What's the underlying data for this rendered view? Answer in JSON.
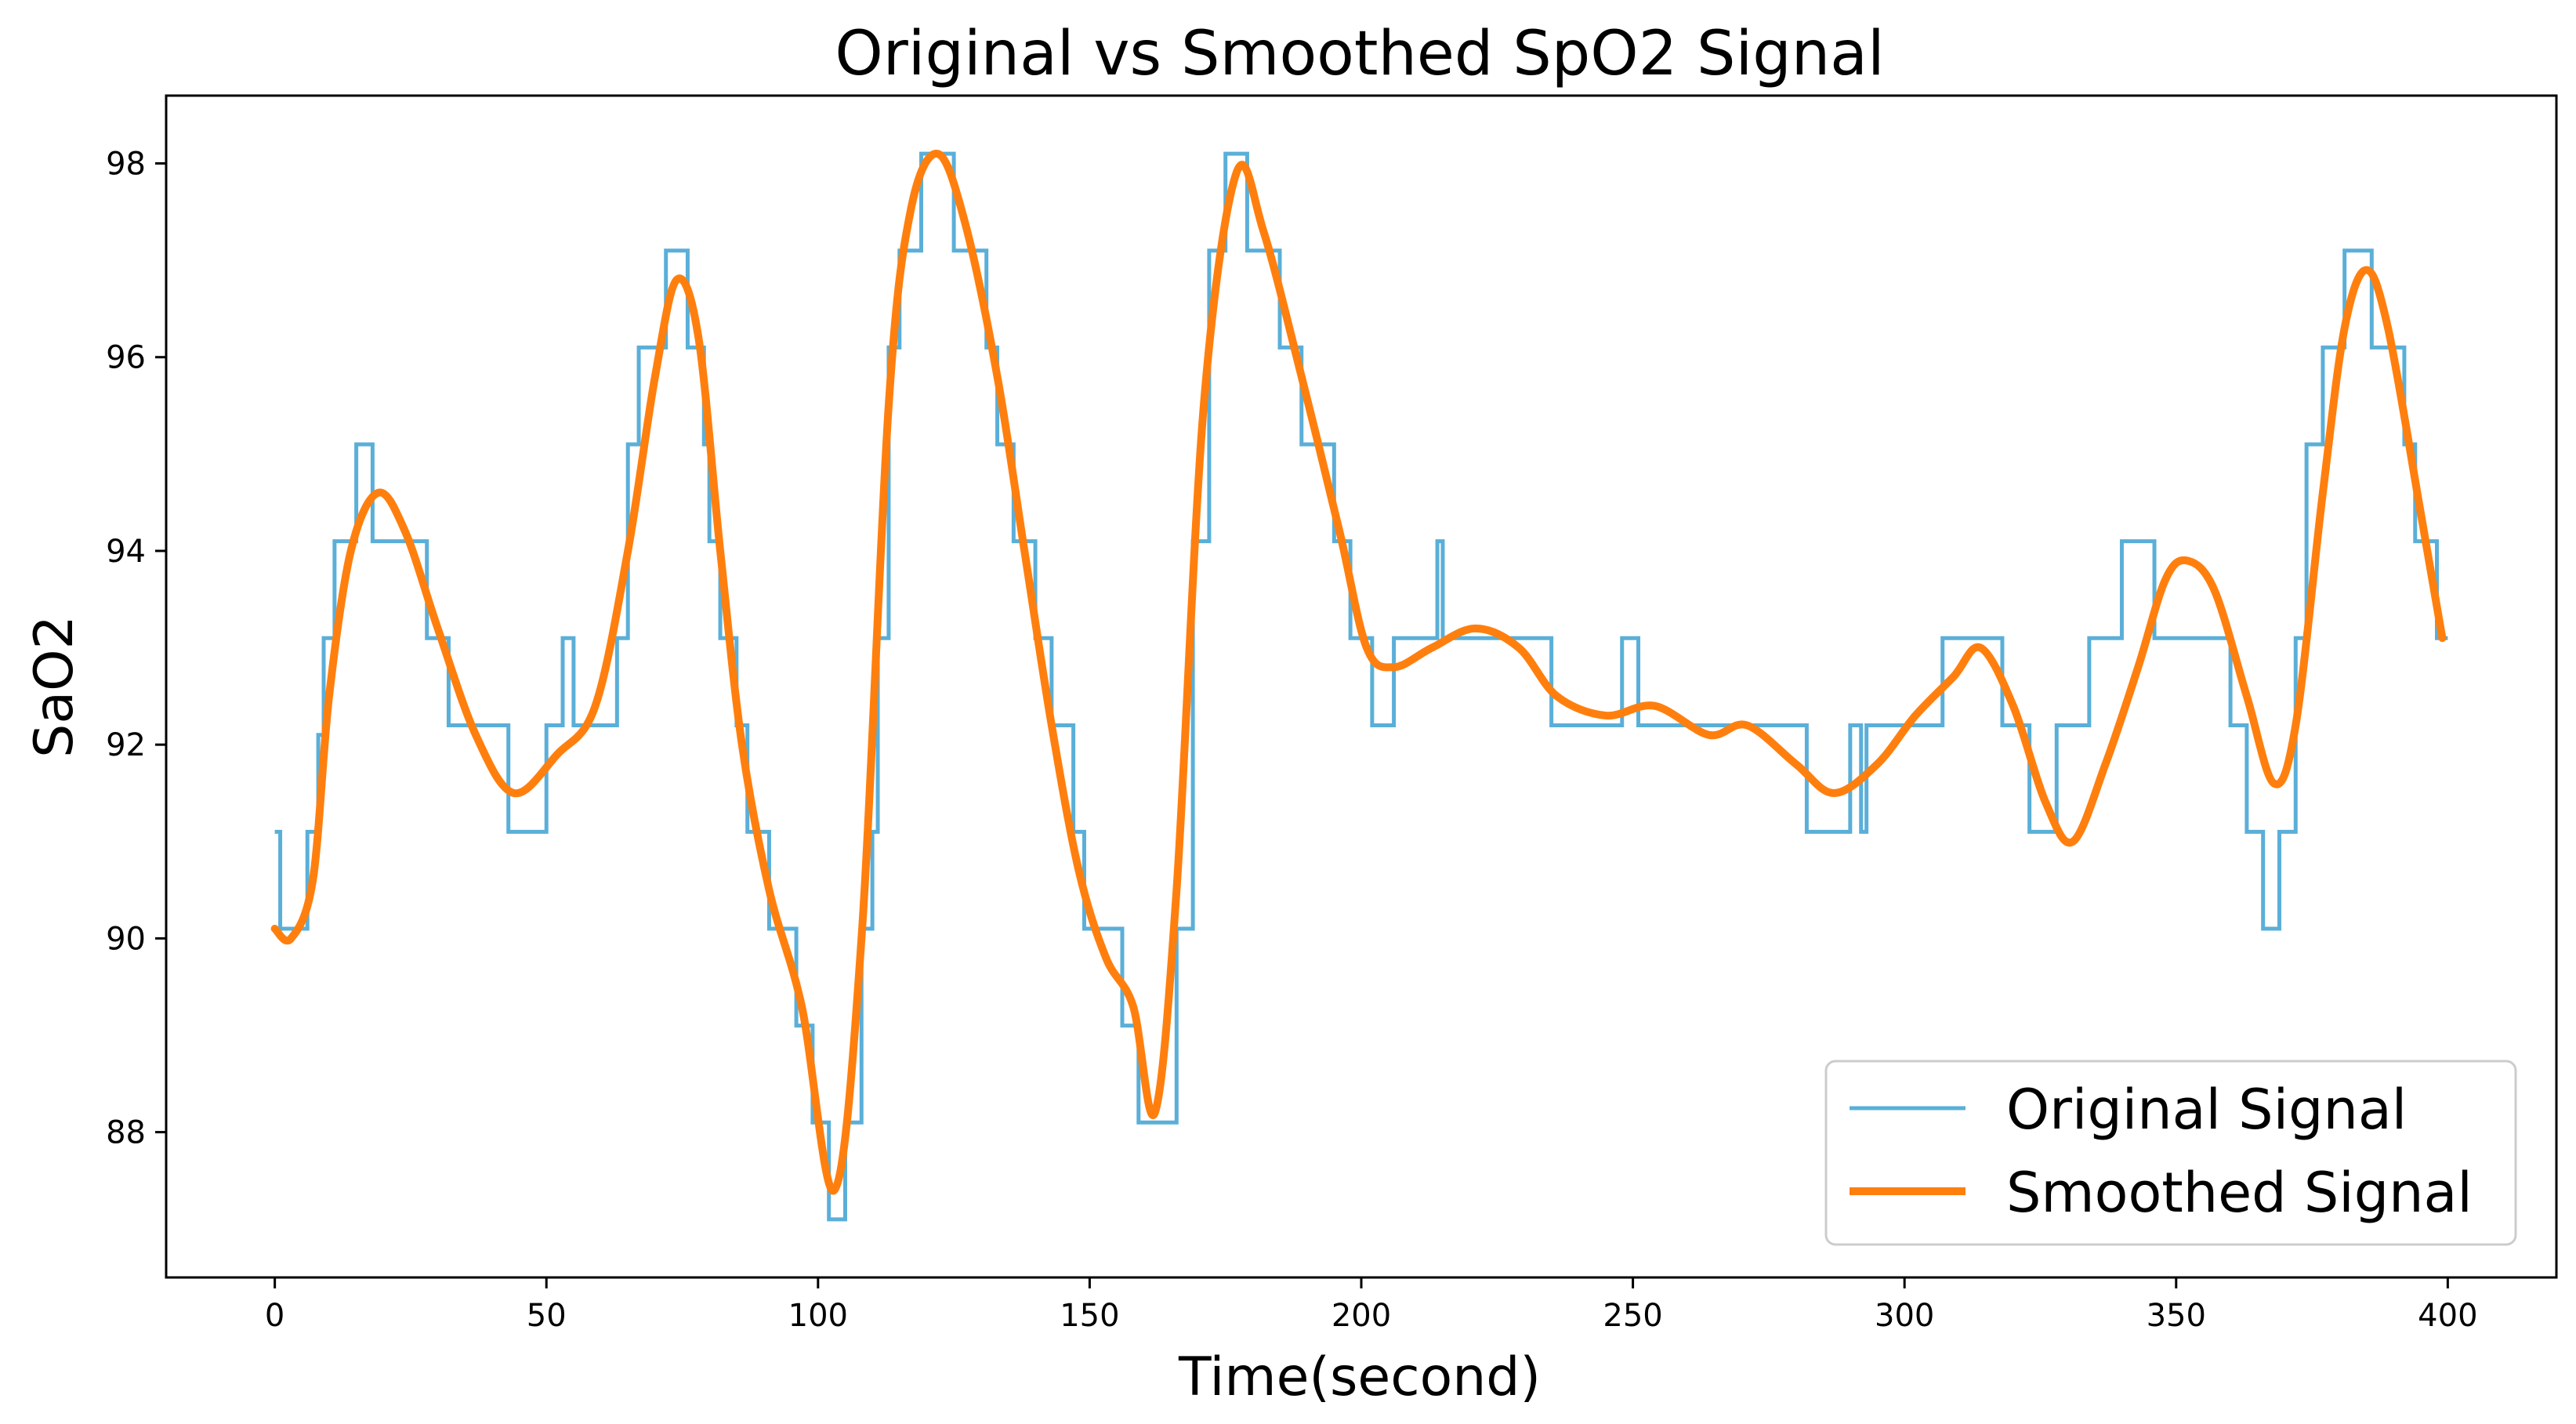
{
  "chart_data": {
    "type": "line",
    "title": "Original vs Smoothed SpO2 Signal",
    "xlabel": "Time(second)",
    "ylabel": "SaO2",
    "xlim": [
      -20,
      420
    ],
    "ylim": [
      86.5,
      98.7
    ],
    "x_ticks": [
      0,
      50,
      100,
      150,
      200,
      250,
      300,
      350,
      400
    ],
    "x_tick_labels": [
      "0",
      "50",
      "100",
      "150",
      "200",
      "250",
      "300",
      "350",
      "400"
    ],
    "y_ticks": [
      88,
      90,
      92,
      94,
      96,
      98
    ],
    "y_tick_labels": [
      "88",
      "90",
      "92",
      "94",
      "96",
      "98"
    ],
    "grid": false,
    "legend_position": "bottom-right",
    "colors": {
      "original": "#5aafd8",
      "smoothed": "#ff7f0e"
    },
    "series": [
      {
        "name": "Original Signal",
        "style": "step",
        "points": [
          [
            0,
            91.1
          ],
          [
            1,
            90.1
          ],
          [
            6,
            91.1
          ],
          [
            8,
            92.1
          ],
          [
            9,
            93.1
          ],
          [
            11,
            94.1
          ],
          [
            15,
            95.1
          ],
          [
            18,
            94.1
          ],
          [
            28,
            93.1
          ],
          [
            32,
            92.2
          ],
          [
            43,
            91.1
          ],
          [
            50,
            92.2
          ],
          [
            53,
            93.1
          ],
          [
            55,
            92.2
          ],
          [
            63,
            93.1
          ],
          [
            65,
            95.1
          ],
          [
            67,
            96.1
          ],
          [
            72,
            97.1
          ],
          [
            76,
            96.1
          ],
          [
            79,
            95.1
          ],
          [
            80,
            94.1
          ],
          [
            82,
            93.1
          ],
          [
            85,
            92.2
          ],
          [
            87,
            91.1
          ],
          [
            91,
            90.1
          ],
          [
            96,
            89.1
          ],
          [
            99,
            88.1
          ],
          [
            102,
            87.1
          ],
          [
            105,
            88.1
          ],
          [
            108,
            90.1
          ],
          [
            110,
            91.1
          ],
          [
            111,
            93.1
          ],
          [
            113,
            96.1
          ],
          [
            115,
            97.1
          ],
          [
            119,
            98.1
          ],
          [
            125,
            97.1
          ],
          [
            131,
            96.1
          ],
          [
            133,
            95.1
          ],
          [
            136,
            94.1
          ],
          [
            140,
            93.1
          ],
          [
            143,
            92.2
          ],
          [
            147,
            91.1
          ],
          [
            149,
            90.1
          ],
          [
            156,
            89.1
          ],
          [
            159,
            88.1
          ],
          [
            166,
            90.1
          ],
          [
            169,
            94.1
          ],
          [
            172,
            97.1
          ],
          [
            175,
            98.1
          ],
          [
            179,
            97.1
          ],
          [
            185,
            96.1
          ],
          [
            189,
            95.1
          ],
          [
            195,
            94.1
          ],
          [
            198,
            93.1
          ],
          [
            202,
            92.2
          ],
          [
            206,
            93.1
          ],
          [
            214,
            94.1
          ],
          [
            215,
            93.1
          ],
          [
            235,
            92.2
          ],
          [
            248,
            93.1
          ],
          [
            251,
            92.2
          ],
          [
            282,
            91.1
          ],
          [
            290,
            92.2
          ],
          [
            292,
            91.1
          ],
          [
            293,
            92.2
          ],
          [
            307,
            93.1
          ],
          [
            318,
            92.2
          ],
          [
            323,
            91.1
          ],
          [
            328,
            92.2
          ],
          [
            334,
            93.1
          ],
          [
            340,
            94.1
          ],
          [
            346,
            93.1
          ],
          [
            360,
            92.2
          ],
          [
            363,
            91.1
          ],
          [
            366,
            90.1
          ],
          [
            369,
            91.1
          ],
          [
            372,
            93.1
          ],
          [
            374,
            95.1
          ],
          [
            377,
            96.1
          ],
          [
            381,
            97.1
          ],
          [
            386,
            96.1
          ],
          [
            392,
            95.1
          ],
          [
            394,
            94.1
          ],
          [
            398,
            93.1
          ],
          [
            400,
            93.1
          ]
        ]
      },
      {
        "name": "Smoothed Signal",
        "style": "smooth",
        "points": [
          [
            0,
            90.1
          ],
          [
            3,
            90.0
          ],
          [
            7,
            90.6
          ],
          [
            10,
            92.5
          ],
          [
            14,
            94.0
          ],
          [
            19,
            94.6
          ],
          [
            24,
            94.2
          ],
          [
            30,
            93.2
          ],
          [
            37,
            92.1
          ],
          [
            44,
            91.5
          ],
          [
            52,
            91.9
          ],
          [
            59,
            92.4
          ],
          [
            65,
            94.0
          ],
          [
            70,
            95.8
          ],
          [
            74,
            96.8
          ],
          [
            78,
            96.2
          ],
          [
            82,
            94.0
          ],
          [
            86,
            92.0
          ],
          [
            91,
            90.5
          ],
          [
            97,
            89.3
          ],
          [
            103,
            87.4
          ],
          [
            108,
            90.0
          ],
          [
            113,
            95.5
          ],
          [
            117,
            97.5
          ],
          [
            122,
            98.1
          ],
          [
            127,
            97.4
          ],
          [
            133,
            95.8
          ],
          [
            138,
            94.0
          ],
          [
            143,
            92.2
          ],
          [
            148,
            90.7
          ],
          [
            153,
            89.8
          ],
          [
            158,
            89.3
          ],
          [
            162,
            88.2
          ],
          [
            166,
            90.5
          ],
          [
            171,
            95.5
          ],
          [
            177,
            97.9
          ],
          [
            182,
            97.3
          ],
          [
            189,
            95.8
          ],
          [
            196,
            94.2
          ],
          [
            201,
            93.0
          ],
          [
            206,
            92.8
          ],
          [
            213,
            93.0
          ],
          [
            221,
            93.2
          ],
          [
            229,
            93.0
          ],
          [
            236,
            92.5
          ],
          [
            245,
            92.3
          ],
          [
            254,
            92.4
          ],
          [
            264,
            92.1
          ],
          [
            271,
            92.2
          ],
          [
            280,
            91.8
          ],
          [
            287,
            91.5
          ],
          [
            295,
            91.8
          ],
          [
            302,
            92.3
          ],
          [
            309,
            92.7
          ],
          [
            314,
            93.0
          ],
          [
            320,
            92.4
          ],
          [
            326,
            91.4
          ],
          [
            331,
            91.0
          ],
          [
            337,
            91.8
          ],
          [
            343,
            92.8
          ],
          [
            348,
            93.7
          ],
          [
            352,
            93.9
          ],
          [
            357,
            93.6
          ],
          [
            363,
            92.5
          ],
          [
            368,
            91.6
          ],
          [
            372,
            92.2
          ],
          [
            377,
            94.6
          ],
          [
            381,
            96.3
          ],
          [
            385,
            96.9
          ],
          [
            389,
            96.3
          ],
          [
            395,
            94.4
          ],
          [
            399,
            93.1
          ]
        ]
      }
    ]
  }
}
